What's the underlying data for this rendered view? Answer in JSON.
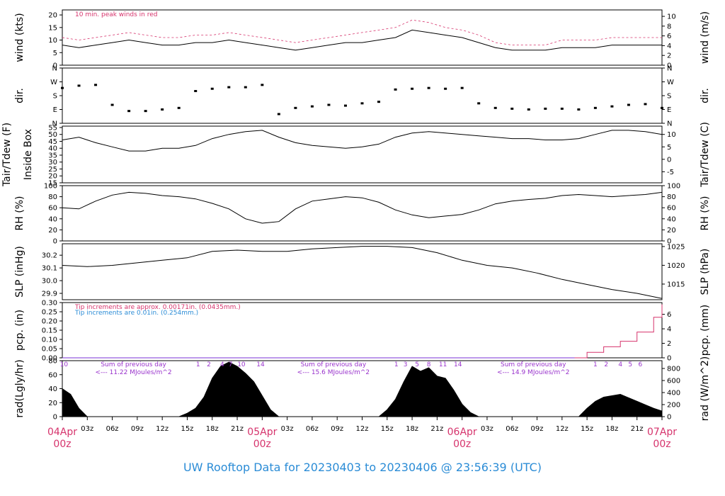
{
  "chart_data": {
    "type": "line",
    "title": "UW Rooftop Data for 20230403  to  20230406 @ 23:56:39  (UTC)",
    "x_axis": {
      "range_hours": [
        0,
        72
      ],
      "hour_ticks": [
        "03z",
        "06z",
        "09z",
        "12z",
        "15z",
        "18z",
        "21z"
      ],
      "day_labels": [
        {
          "hour": 0,
          "date": "04Apr",
          "time": "00z"
        },
        {
          "hour": 24,
          "date": "05Apr",
          "time": "00z"
        },
        {
          "hour": 48,
          "date": "06Apr",
          "time": "00z"
        },
        {
          "hour": 72,
          "date": "07Apr",
          "time": "00z"
        }
      ]
    },
    "panels": [
      {
        "id": "wind",
        "ylabel_left": "wind (kts)",
        "ylabel_right": "wind (m/s)",
        "ylim": [
          0,
          22
        ],
        "ticks_left": [
          0,
          5,
          10,
          15,
          20
        ],
        "ticks_right": [
          0,
          2,
          4,
          6,
          8,
          10
        ],
        "right_scale": 1.944,
        "note": "10 min. peak winds in red",
        "series": [
          {
            "values_x": [
              0,
              2,
              4,
              6,
              8,
              10,
              12,
              14,
              16,
              18,
              20,
              22,
              24,
              26,
              28,
              30,
              32,
              34,
              36,
              38,
              40,
              42,
              44,
              46,
              48,
              50,
              52,
              54,
              56,
              58,
              60,
              62,
              64,
              66,
              68,
              70,
              72
            ],
            "values_y": [
              8,
              7,
              8,
              9,
              10,
              9,
              8,
              8,
              9,
              9,
              10,
              9,
              8,
              7,
              6,
              7,
              8,
              9,
              9,
              10,
              11,
              14,
              13,
              12,
              11,
              9,
              7,
              6,
              6,
              6,
              7,
              7,
              7,
              8,
              8,
              8,
              8
            ],
            "color": "#000000"
          },
          {
            "values_x": [
              0,
              2,
              4,
              6,
              8,
              10,
              12,
              14,
              16,
              18,
              20,
              22,
              24,
              26,
              28,
              30,
              32,
              34,
              36,
              38,
              40,
              42,
              44,
              46,
              48,
              50,
              52,
              54,
              56,
              58,
              60,
              62,
              64,
              66,
              68,
              70,
              72
            ],
            "values_y": [
              11,
              10,
              11,
              12,
              13,
              12,
              11,
              11,
              12,
              12,
              13,
              12,
              11,
              10,
              9,
              10,
              11,
              12,
              13,
              14,
              15,
              18,
              17,
              15,
              14,
              12,
              9,
              8,
              8,
              8,
              10,
              10,
              10,
              11,
              11,
              11,
              11
            ],
            "color": "#d6336c"
          }
        ]
      },
      {
        "id": "dir",
        "ylabel_left": "dir.",
        "ylabel_right": "dir.",
        "ylim": [
          0,
          360
        ],
        "tick_labels": [
          "N",
          "E",
          "S",
          "W",
          "N"
        ],
        "tick_values": [
          0,
          90,
          180,
          270,
          360
        ],
        "series": [
          {
            "values_x": [
              0,
              2,
              4,
              6,
              8,
              10,
              12,
              14,
              16,
              18,
              20,
              22,
              24,
              26,
              28,
              30,
              32,
              34,
              36,
              38,
              40,
              42,
              44,
              46,
              48,
              50,
              52,
              54,
              56,
              58,
              60,
              62,
              64,
              66,
              68,
              70,
              72
            ],
            "values_y": [
              230,
              245,
              250,
              120,
              80,
              80,
              90,
              100,
              210,
              225,
              235,
              235,
              250,
              60,
              100,
              110,
              120,
              115,
              130,
              140,
              220,
              225,
              230,
              225,
              230,
              130,
              100,
              95,
              90,
              95,
              95,
              90,
              100,
              110,
              120,
              125,
              100
            ],
            "color": "#000000"
          }
        ]
      },
      {
        "id": "temp",
        "ylabel_left": "Tair/Tdew (F)",
        "ylabel_left2": "Inside Box",
        "ylabel_right": "Tair/Tdew (C)",
        "ylim": [
          15,
          56
        ],
        "ticks_left": [
          15,
          20,
          25,
          30,
          35,
          40,
          45,
          50,
          55
        ],
        "ticks_right": [
          -5,
          0,
          5,
          10
        ],
        "series": [
          {
            "values_x": [
              0,
              2,
              4,
              6,
              8,
              10,
              12,
              14,
              16,
              18,
              20,
              22,
              24,
              26,
              28,
              30,
              32,
              34,
              36,
              38,
              40,
              42,
              44,
              46,
              48,
              50,
              52,
              54,
              56,
              58,
              60,
              62,
              64,
              66,
              68,
              70,
              72
            ],
            "values_y": [
              46,
              48,
              44,
              41,
              38,
              38,
              40,
              40,
              42,
              47,
              50,
              52,
              53,
              48,
              44,
              42,
              41,
              40,
              41,
              43,
              48,
              51,
              52,
              51,
              50,
              49,
              48,
              47,
              47,
              46,
              46,
              47,
              50,
              53,
              53,
              52,
              50
            ],
            "color": "#000000"
          }
        ]
      },
      {
        "id": "rh",
        "ylabel_left": "RH (%)",
        "ylabel_right": "RH (%)",
        "ylim": [
          0,
          100
        ],
        "ticks_left": [
          0,
          20,
          40,
          60,
          80,
          100
        ],
        "ticks_right": [
          0,
          20,
          40,
          60,
          80,
          100
        ],
        "series": [
          {
            "values_x": [
              0,
              2,
              4,
              6,
              8,
              10,
              12,
              14,
              16,
              18,
              20,
              22,
              24,
              26,
              28,
              30,
              32,
              34,
              36,
              38,
              40,
              42,
              44,
              46,
              48,
              50,
              52,
              54,
              56,
              58,
              60,
              62,
              64,
              66,
              68,
              70,
              72
            ],
            "values_y": [
              60,
              58,
              72,
              83,
              88,
              86,
              82,
              80,
              76,
              68,
              58,
              40,
              32,
              35,
              58,
              72,
              76,
              80,
              78,
              70,
              56,
              47,
              42,
              45,
              48,
              56,
              67,
              72,
              75,
              77,
              82,
              84,
              82,
              80,
              82,
              84,
              88
            ],
            "color": "#000000"
          }
        ]
      },
      {
        "id": "slp",
        "ylabel_left": "SLP (inHg)",
        "ylabel_right": "SLP (hPa)",
        "ylim": [
          29.85,
          30.29
        ],
        "ticks_left": [
          29.9,
          30.0,
          30.1,
          30.2
        ],
        "ticks_left_labels": [
          "29.9",
          "30.0",
          "30.1",
          "30.2"
        ],
        "ticks_right": [
          1015,
          1020,
          1025
        ],
        "series": [
          {
            "values_x": [
              0,
              3,
              6,
              9,
              12,
              15,
              18,
              21,
              24,
              27,
              30,
              33,
              36,
              39,
              42,
              45,
              48,
              51,
              54,
              57,
              60,
              63,
              66,
              69,
              72
            ],
            "values_y": [
              30.12,
              30.11,
              30.12,
              30.14,
              30.16,
              30.18,
              30.23,
              30.24,
              30.23,
              30.23,
              30.25,
              30.26,
              30.27,
              30.27,
              30.26,
              30.22,
              30.16,
              30.12,
              30.1,
              30.06,
              30.01,
              29.97,
              29.93,
              29.9,
              29.86
            ],
            "color": "#000000"
          }
        ]
      },
      {
        "id": "pcp",
        "ylabel_left": "pcp. (in)",
        "ylabel_right": "pcp. (mm)",
        "ylim": [
          0,
          0.3
        ],
        "ticks_left": [
          0.0,
          0.05,
          0.1,
          0.15,
          0.2,
          0.25,
          0.3
        ],
        "ticks_left_labels": [
          "0.00",
          "0.05",
          "0.10",
          "0.15",
          "0.20",
          "0.25",
          "0.30"
        ],
        "ticks_right": [
          0,
          2,
          4,
          6
        ],
        "note_red": "Tip increments are approx. 0.00171in. (0.0435mm.)",
        "note_blue": "Tip increments are 0.01in. (0.254mm.)",
        "series": [
          {
            "values_x": [
              0,
              61.5,
              63,
              65,
              67,
              69,
              71,
              72
            ],
            "values_y": [
              0,
              0,
              0.03,
              0.06,
              0.09,
              0.14,
              0.22,
              0.29
            ],
            "color": "#d6336c"
          },
          {
            "values_x": [
              0,
              61.5
            ],
            "values_y": [
              0,
              0
            ],
            "color": "#7a30d6"
          }
        ]
      },
      {
        "id": "rad",
        "ylabel_left": "rad(Lgly/hr)",
        "ylabel_right": "rad (W/m^2)",
        "ylim": [
          0,
          80
        ],
        "ticks_left": [
          0,
          20,
          40,
          60,
          80
        ],
        "ticks_right": [
          0,
          200,
          400,
          600,
          800
        ],
        "summaries": [
          {
            "text": "Sum of previous day",
            "value": "<--- 11.22 MJoules/m^2",
            "hour": 6
          },
          {
            "text": "Sum of previous day",
            "value": "<--- 15.6 MJoules/m^2",
            "hour": 30
          },
          {
            "text": "Sum of previous day",
            "value": "<--- 14.9 MJoules/m^2",
            "hour": 54
          }
        ],
        "marker_labels": [
          {
            "hour": 0.2,
            "text": "10"
          },
          {
            "hour": 16.3,
            "text": "1"
          },
          {
            "hour": 17.6,
            "text": "2"
          },
          {
            "hour": 19.2,
            "text": "4"
          },
          {
            "hour": 20.2,
            "text": "7"
          },
          {
            "hour": 21.5,
            "text": "10"
          },
          {
            "hour": 23.8,
            "text": "14"
          },
          {
            "hour": 40.1,
            "text": "1"
          },
          {
            "hour": 41.2,
            "text": "3"
          },
          {
            "hour": 42.6,
            "text": "5"
          },
          {
            "hour": 44.0,
            "text": "8"
          },
          {
            "hour": 45.7,
            "text": "11"
          },
          {
            "hour": 47.5,
            "text": "14"
          },
          {
            "hour": 64.0,
            "text": "1"
          },
          {
            "hour": 65.3,
            "text": "2"
          },
          {
            "hour": 67.0,
            "text": "4"
          },
          {
            "hour": 68.2,
            "text": "5"
          },
          {
            "hour": 69.4,
            "text": "6"
          }
        ],
        "series": [
          {
            "values_x": [
              0,
              1,
              2,
              3,
              14,
              15,
              16,
              17,
              18,
              19,
              20,
              21,
              22,
              23,
              24,
              25,
              26,
              38,
              39,
              40,
              41,
              42,
              43,
              44,
              45,
              46,
              47,
              48,
              49,
              50,
              62,
              63,
              64,
              65,
              66,
              67,
              68,
              69,
              70,
              71,
              72
            ],
            "values_y": [
              40,
              32,
              12,
              0,
              0,
              5,
              12,
              28,
              55,
              72,
              78,
              72,
              62,
              50,
              30,
              10,
              0,
              0,
              10,
              25,
              50,
              72,
              65,
              70,
              58,
              55,
              38,
              18,
              6,
              0,
              0,
              12,
              22,
              28,
              30,
              32,
              27,
              22,
              17,
              12,
              8
            ],
            "color": "#000000"
          }
        ]
      }
    ]
  }
}
